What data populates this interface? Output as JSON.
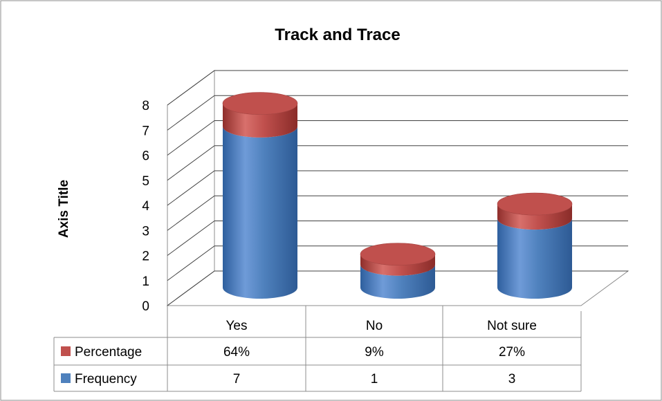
{
  "chart_data": {
    "type": "bar",
    "title": "Track and Trace",
    "ylabel": "Axis Title",
    "xlabel": "",
    "ylim": [
      0,
      8
    ],
    "yticks": [
      0,
      1,
      2,
      3,
      4,
      5,
      6,
      7,
      8
    ],
    "categories": [
      "Yes",
      "No",
      "Not sure"
    ],
    "series": [
      {
        "name": "Frequency",
        "values": [
          7,
          1,
          3
        ],
        "labels": [
          "7",
          "1",
          "3"
        ],
        "color": "#4F81BD"
      },
      {
        "name": "Percentage",
        "values": [
          0.64,
          0.09,
          0.27
        ],
        "labels": [
          "64%",
          "9%",
          "27%"
        ],
        "color": "#C0504D"
      }
    ],
    "stacked": true,
    "style": "3d-cylinder",
    "grid": true,
    "legend": "data-table-below",
    "data_table": true
  }
}
